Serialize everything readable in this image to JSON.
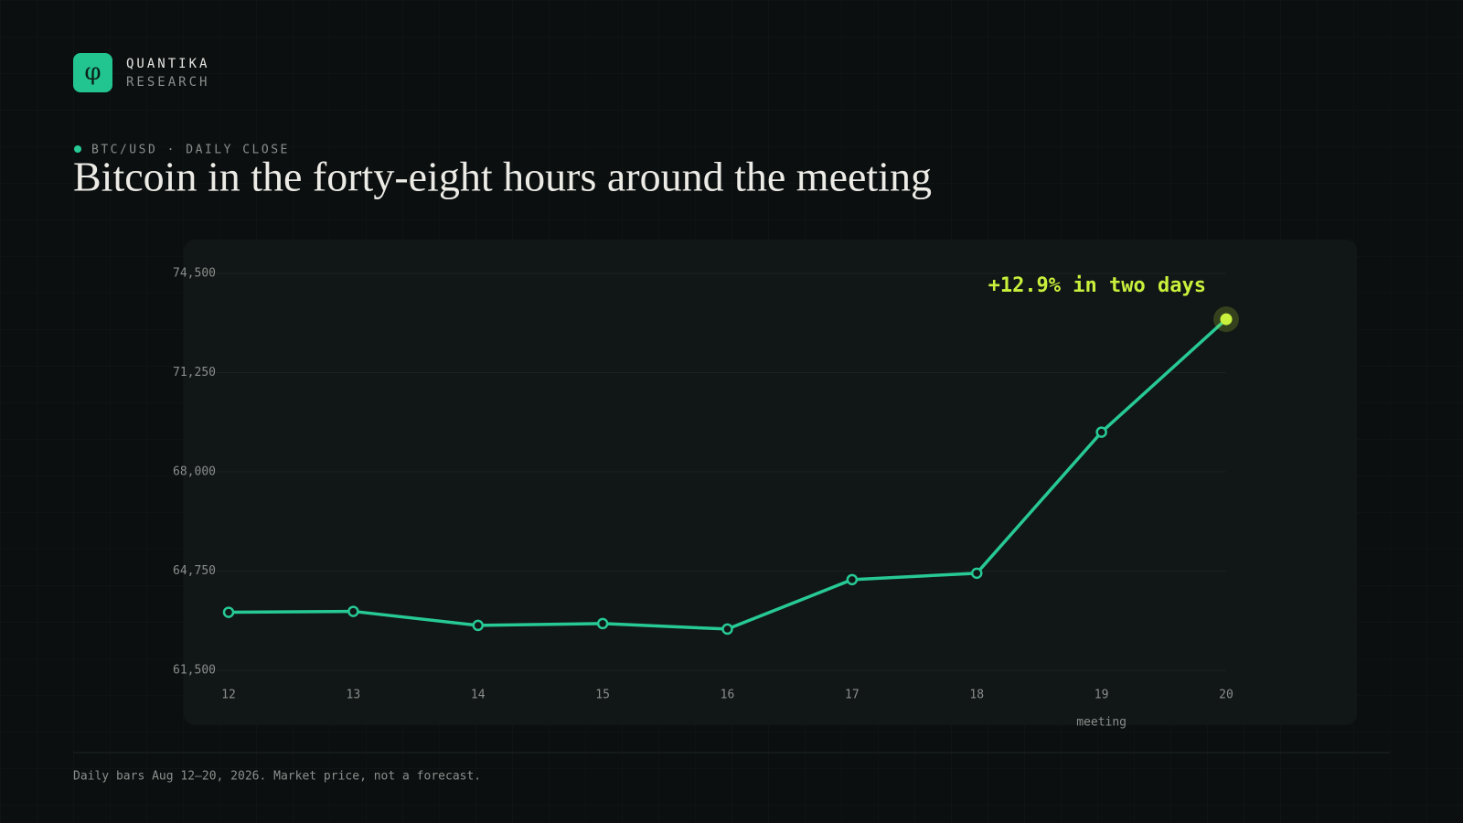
{
  "header": {
    "logo": "φ",
    "brand": "QUANTIKA",
    "sub": "RESEARCH"
  },
  "kicker": "BTC/USD · DAILY CLOSE",
  "chart_data": {
    "type": "line",
    "title": "Bitcoin in the forty-eight hours around the meeting",
    "categories": [
      "12",
      "13",
      "14",
      "15",
      "16",
      "17",
      "18",
      "19",
      "20"
    ],
    "series": [
      {
        "name": "BTC/USD",
        "color": "#27c995",
        "values": [
          63400,
          63430,
          62970,
          63030,
          62850,
          64470,
          64680,
          69300,
          73000
        ]
      }
    ],
    "ylim": [
      61500,
      74500
    ],
    "yticks": [
      {
        "value": 61500,
        "label": "61,500"
      },
      {
        "value": 64750,
        "label": "64,750"
      },
      {
        "value": 68000,
        "label": "68,000"
      },
      {
        "value": 71250,
        "label": "71,250"
      },
      {
        "value": 74500,
        "label": "74,500"
      }
    ],
    "grid": true,
    "annotation": {
      "text": "+12.9% in two days",
      "color": "#c8f03c"
    },
    "event": {
      "category": "19",
      "label": "meeting"
    }
  },
  "footnote": "Daily bars Aug 12–20, 2026. Market price, not a forecast."
}
